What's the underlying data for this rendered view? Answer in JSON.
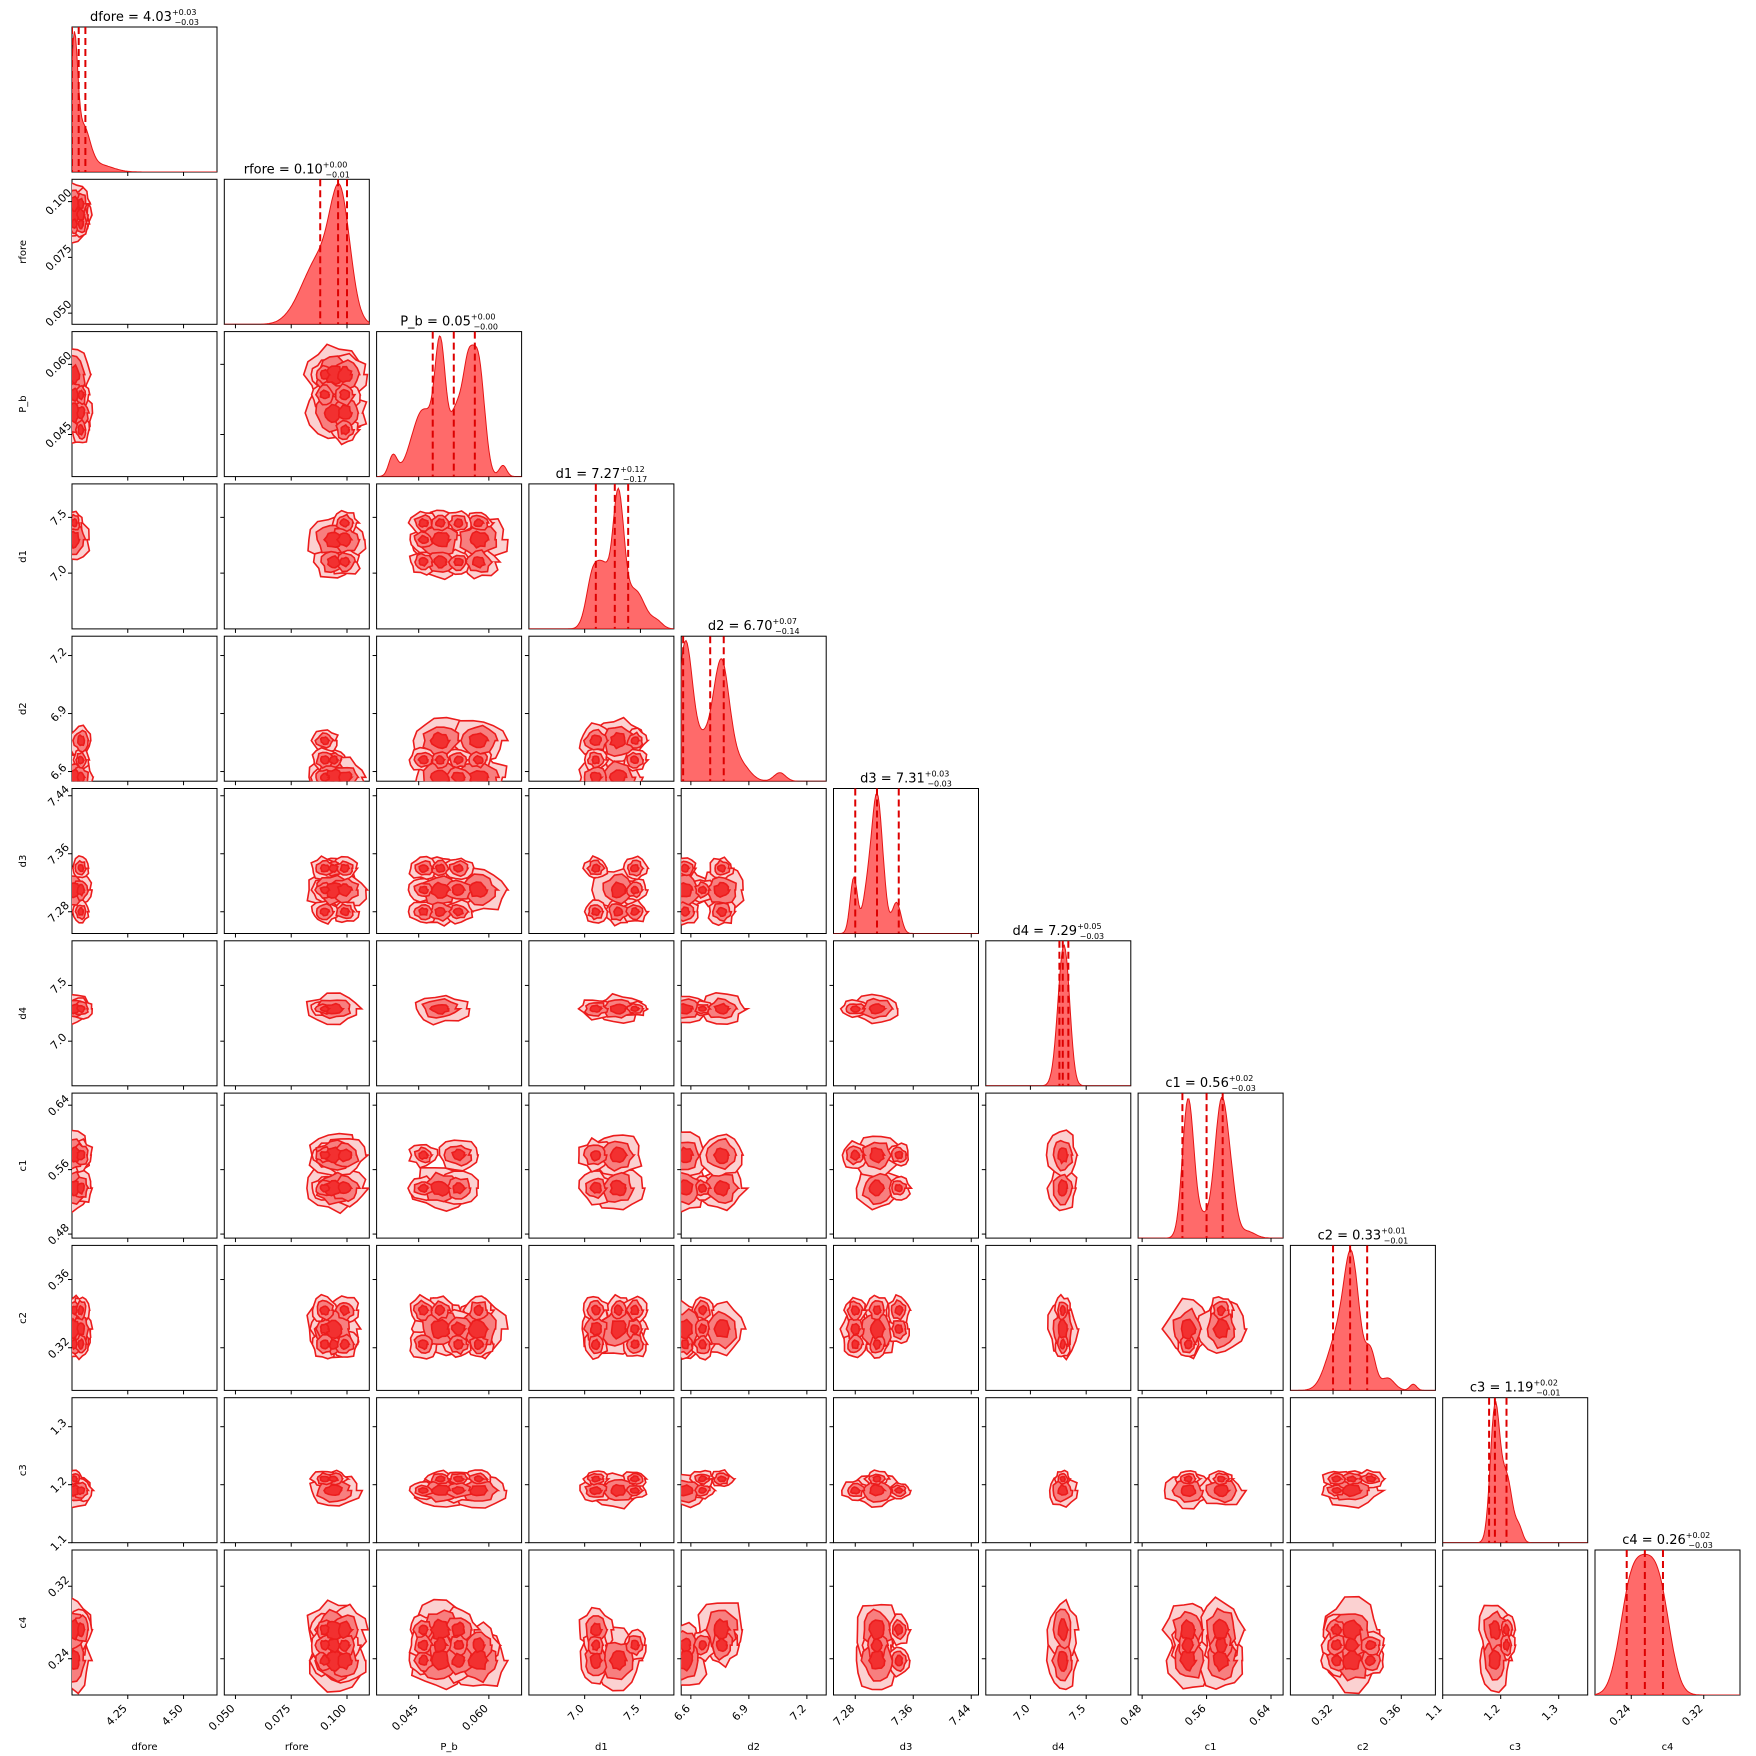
{
  "chart_data": {
    "type": "corner",
    "color": "#ff0000",
    "parameters": [
      {
        "name": "dfore",
        "label": "dfore",
        "median": 4.03,
        "title": {
          "main": "dfore = 4.03",
          "plus": "+0.03",
          "minus": "−0.03"
        },
        "quantiles": [
          4.0,
          4.03,
          4.06
        ],
        "range": [
          4.0,
          4.65
        ],
        "ticks": [
          4.25,
          4.5
        ],
        "tick_labels": [
          "4.25",
          "4.50"
        ]
      },
      {
        "name": "rfore",
        "label": "rfore",
        "median": 0.1,
        "title": {
          "main": "rfore = 0.10",
          "plus": "+0.00",
          "minus": "−0.01"
        },
        "quantiles": [
          0.088,
          0.096,
          0.1
        ],
        "range": [
          0.045,
          0.11
        ],
        "ticks": [
          0.05,
          0.075,
          0.1
        ],
        "tick_labels": [
          "0.050",
          "0.075",
          "0.100"
        ]
      },
      {
        "name": "P_b",
        "label": "P_b",
        "median": 0.05,
        "title": {
          "main": "P_b = 0.05",
          "plus": "+0.00",
          "minus": "−0.00"
        },
        "quantiles": [
          0.048,
          0.0525,
          0.057
        ],
        "range": [
          0.036,
          0.067
        ],
        "ticks": [
          0.045,
          0.06
        ],
        "tick_labels": [
          "0.045",
          "0.060"
        ]
      },
      {
        "name": "d1",
        "label": "d1",
        "median": 7.27,
        "title": {
          "main": "d1 = 7.27",
          "plus": "+0.12",
          "minus": "−0.17"
        },
        "quantiles": [
          7.1,
          7.27,
          7.39
        ],
        "range": [
          6.5,
          7.8
        ],
        "ticks": [
          7.0,
          7.5
        ],
        "tick_labels": [
          "7.0",
          "7.5"
        ]
      },
      {
        "name": "d2",
        "label": "d2",
        "median": 6.7,
        "title": {
          "main": "d2 = 6.70",
          "plus": "+0.07",
          "minus": "−0.14"
        },
        "quantiles": [
          6.56,
          6.7,
          6.77
        ],
        "range": [
          6.55,
          7.3
        ],
        "ticks": [
          6.6,
          6.9,
          7.2
        ],
        "tick_labels": [
          "6.6",
          "6.9",
          "7.2"
        ]
      },
      {
        "name": "d3",
        "label": "d3",
        "median": 7.31,
        "title": {
          "main": "d3 = 7.31",
          "plus": "+0.03",
          "minus": "−0.03"
        },
        "quantiles": [
          7.28,
          7.31,
          7.34
        ],
        "range": [
          7.25,
          7.45
        ],
        "ticks": [
          7.28,
          7.36,
          7.44
        ],
        "tick_labels": [
          "7.28",
          "7.36",
          "7.44"
        ]
      },
      {
        "name": "d4",
        "label": "d4",
        "median": 7.29,
        "title": {
          "main": "d4 = 7.29",
          "plus": "+0.05",
          "minus": "−0.03"
        },
        "quantiles": [
          7.26,
          7.29,
          7.34
        ],
        "range": [
          6.6,
          7.9
        ],
        "ticks": [
          7.0,
          7.5
        ],
        "tick_labels": [
          "7.0",
          "7.5"
        ]
      },
      {
        "name": "c1",
        "label": "c1",
        "median": 0.56,
        "title": {
          "main": "c1 = 0.56",
          "plus": "+0.02",
          "minus": "−0.03"
        },
        "quantiles": [
          0.53,
          0.56,
          0.58
        ],
        "range": [
          0.475,
          0.655
        ],
        "ticks": [
          0.48,
          0.56,
          0.64
        ],
        "tick_labels": [
          "0.48",
          "0.56",
          "0.64"
        ]
      },
      {
        "name": "c2",
        "label": "c2",
        "median": 0.33,
        "title": {
          "main": "c2 = 0.33",
          "plus": "+0.01",
          "minus": "−0.01"
        },
        "quantiles": [
          0.32,
          0.33,
          0.34
        ],
        "range": [
          0.295,
          0.38
        ],
        "ticks": [
          0.32,
          0.36
        ],
        "tick_labels": [
          "0.32",
          "0.36"
        ]
      },
      {
        "name": "c3",
        "label": "c3",
        "median": 1.19,
        "title": {
          "main": "c3 = 1.19",
          "plus": "+0.02",
          "minus": "−0.01"
        },
        "quantiles": [
          1.18,
          1.19,
          1.21
        ],
        "range": [
          1.1,
          1.35
        ],
        "ticks": [
          1.1,
          1.2,
          1.3
        ],
        "tick_labels": [
          "1.1",
          "1.2",
          "1.3"
        ]
      },
      {
        "name": "c4",
        "label": "c4",
        "median": 0.26,
        "title": {
          "main": "c4 = 0.26",
          "plus": "+0.02",
          "minus": "−0.03"
        },
        "quantiles": [
          0.235,
          0.255,
          0.275
        ],
        "range": [
          0.2,
          0.36
        ],
        "ticks": [
          0.24,
          0.32
        ],
        "tick_labels": [
          "0.24",
          "0.32"
        ]
      }
    ],
    "y_tick_params": {
      "rfore": {
        "ticks": [
          0.05,
          0.075,
          0.1
        ],
        "tick_labels": [
          "0.050",
          "0.075",
          "0.100"
        ]
      },
      "P_b": {
        "ticks": [
          0.045,
          0.06
        ],
        "tick_labels": [
          "0.045",
          "0.060"
        ]
      },
      "d1": {
        "ticks": [
          7.0,
          7.5
        ],
        "tick_labels": [
          "7.0",
          "7.5"
        ]
      },
      "d2": {
        "ticks": [
          6.6,
          6.9,
          7.2
        ],
        "tick_labels": [
          "6.6",
          "6.9",
          "7.2"
        ]
      },
      "d3": {
        "ticks": [
          7.28,
          7.36,
          7.44
        ],
        "tick_labels": [
          "7.28",
          "7.36",
          "7.44"
        ]
      },
      "d4": {
        "ticks": [
          7.0,
          7.5
        ],
        "tick_labels": [
          "7.0",
          "7.5"
        ]
      },
      "c1": {
        "ticks": [
          0.48,
          0.56,
          0.64
        ],
        "tick_labels": [
          "0.48",
          "0.56",
          "0.64"
        ]
      },
      "c2": {
        "ticks": [
          0.32,
          0.36
        ],
        "tick_labels": [
          "0.32",
          "0.36"
        ]
      },
      "c3": {
        "ticks": [
          1.1,
          1.2,
          1.3
        ],
        "tick_labels": [
          "1.1",
          "1.2",
          "1.3"
        ]
      },
      "c4": {
        "ticks": [
          0.24,
          0.32
        ],
        "tick_labels": [
          "0.24",
          "0.32"
        ]
      }
    }
  }
}
